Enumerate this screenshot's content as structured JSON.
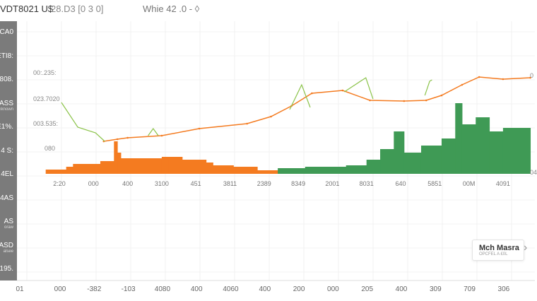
{
  "header": {
    "title": "VDT8021 U$",
    "subtitle": "28.D3 [0 3 0]",
    "info": "Whie 42 .0 - ◊"
  },
  "sidebar": {
    "items": [
      {
        "label": "CA0"
      },
      {
        "label": "ETI8:"
      },
      {
        "label": "808."
      },
      {
        "label": "ASS",
        "sub": "unknown"
      },
      {
        "label": "E1%."
      },
      {
        "label": "4 S:"
      },
      {
        "label": "4EL"
      },
      {
        "label": "44AS"
      },
      {
        "label": "AS",
        "sub": "oraw"
      },
      {
        "label": "ASD",
        "sub": "alsee"
      },
      {
        "label": "195."
      }
    ]
  },
  "legend": {
    "name": "Mch Masra",
    "sub": "OPCFEL A £0L",
    "chevron": "chevron-right-icon"
  },
  "chart_data": {
    "type": "bar",
    "categories": [
      "2:20",
      "000",
      "400",
      "3100",
      "451",
      "3811",
      "2389",
      "8349",
      "2001",
      "8031",
      "640",
      "5851",
      "00M",
      "4091"
    ],
    "bottom_ticks": [
      "01",
      "000",
      "-382",
      "-103",
      "4080",
      "400",
      "4060",
      "400",
      "200",
      "000",
      "205",
      "400",
      "309",
      "709",
      "306"
    ],
    "y_labels": [
      "00:.235:",
      "023.7020",
      "003.535:",
      "080"
    ],
    "right_labels": [
      "0",
      "04"
    ],
    "colors": {
      "orange": "#f47b20",
      "green": "#3f9a55",
      "line_green": "#8bc34a"
    },
    "orange_bars": [
      [
        -0.4,
        0.2,
        6
      ],
      [
        0.2,
        0.4,
        10
      ],
      [
        0.4,
        1.2,
        14
      ],
      [
        1.2,
        1.6,
        18
      ],
      [
        1.6,
        1.7,
        46
      ],
      [
        1.7,
        1.8,
        30
      ],
      [
        1.8,
        3.0,
        22
      ],
      [
        3.0,
        3.6,
        24
      ],
      [
        3.2,
        4.3,
        20
      ],
      [
        4.3,
        4.5,
        16
      ],
      [
        4.5,
        5.1,
        12
      ],
      [
        5.1,
        5.8,
        10
      ],
      [
        5.8,
        6.4,
        5
      ]
    ],
    "green_bars": [
      [
        6.4,
        7.2,
        8
      ],
      [
        7.2,
        8.4,
        10
      ],
      [
        8.4,
        9.0,
        12
      ],
      [
        9.0,
        9.4,
        20
      ],
      [
        9.4,
        9.8,
        35
      ],
      [
        9.8,
        10.1,
        60
      ],
      [
        10.1,
        10.6,
        30
      ],
      [
        10.6,
        11.2,
        40
      ],
      [
        11.2,
        11.6,
        50
      ],
      [
        11.6,
        11.8,
        100
      ],
      [
        11.8,
        12.2,
        70
      ],
      [
        12.2,
        12.6,
        80
      ],
      [
        12.6,
        13.0,
        60
      ],
      [
        13.0,
        13.8,
        65
      ]
    ],
    "orange_line": [
      [
        1.3,
        46
      ],
      [
        1.7,
        49
      ],
      [
        2.0,
        51
      ],
      [
        3.0,
        54
      ],
      [
        4.1,
        64
      ],
      [
        5.5,
        71
      ],
      [
        6.2,
        81
      ],
      [
        6.8,
        96
      ],
      [
        7.4,
        114
      ],
      [
        8.3,
        118
      ],
      [
        9.1,
        104
      ],
      [
        10.1,
        103
      ],
      [
        10.75,
        104
      ],
      [
        11.2,
        111
      ],
      [
        11.8,
        126
      ],
      [
        12.3,
        137
      ],
      [
        13.0,
        134
      ],
      [
        13.8,
        136
      ]
    ],
    "green_line": [
      [
        [
          0.06,
          101
        ],
        [
          0.54,
          66
        ],
        [
          1.06,
          58
        ],
        [
          1.33,
          46
        ]
      ],
      [
        [
          2.6,
          54
        ],
        [
          2.75,
          64
        ],
        [
          2.9,
          54
        ]
      ],
      [
        [
          6.75,
          91
        ],
        [
          7.1,
          126
        ],
        [
          7.35,
          94
        ]
      ],
      [
        [
          8.35,
          116
        ],
        [
          8.98,
          136
        ],
        [
          9.19,
          106
        ]
      ],
      [
        [
          10.71,
          111
        ],
        [
          10.85,
          131
        ],
        [
          10.92,
          133
        ]
      ]
    ]
  }
}
